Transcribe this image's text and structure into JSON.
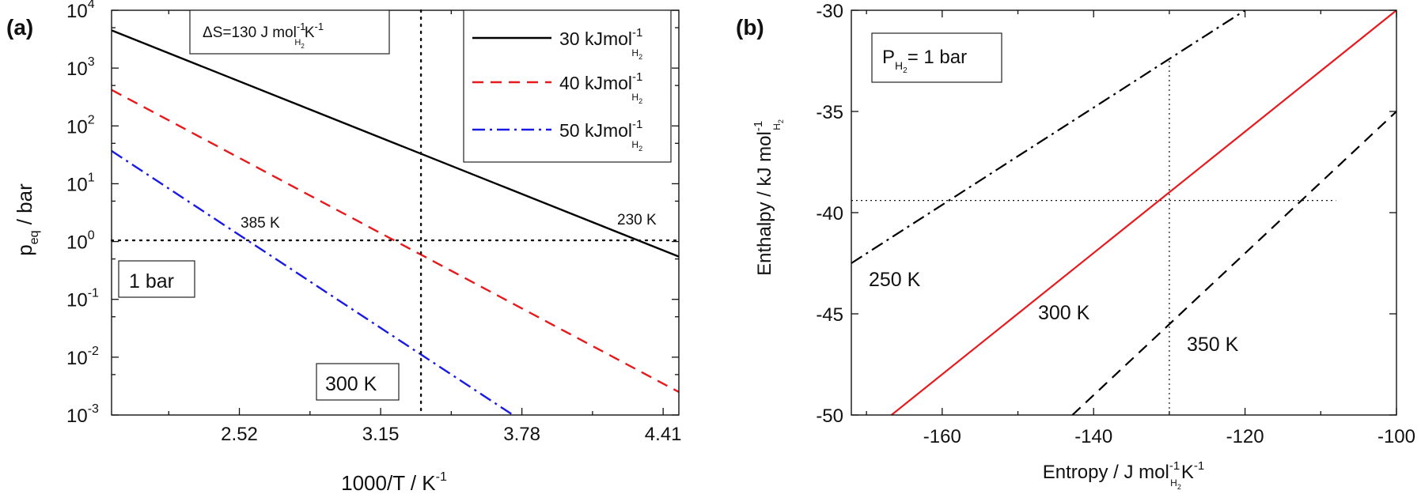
{
  "chart_data": [
    {
      "panel": "(a)",
      "type": "line",
      "yscale": "log",
      "xlabel": "1000/T / K",
      "xlabel_sup": "-1",
      "ylabel_main": "p",
      "ylabel_sub": "eq",
      "ylabel_unit": " / bar",
      "xlim": [
        1.95,
        4.48
      ],
      "ylim": [
        0.001,
        10000
      ],
      "xticks": [
        {
          "value": 2.52,
          "label": "2.52"
        },
        {
          "value": 3.15,
          "label": "3.15"
        },
        {
          "value": 3.78,
          "label": "3.78"
        },
        {
          "value": 4.41,
          "label": "4.41"
        }
      ],
      "yticks": [
        {
          "value": 10000,
          "base": "10",
          "exp": "4"
        },
        {
          "value": 1000,
          "base": "10",
          "exp": "3"
        },
        {
          "value": 100,
          "base": "10",
          "exp": "2"
        },
        {
          "value": 10,
          "base": "10",
          "exp": "1"
        },
        {
          "value": 1,
          "base": "10",
          "exp": "0"
        },
        {
          "value": 0.1,
          "base": "10",
          "exp": "-1"
        },
        {
          "value": 0.01,
          "base": "10",
          "exp": "-2"
        },
        {
          "value": 0.001,
          "base": "10",
          "exp": "-3"
        }
      ],
      "series": [
        {
          "name": "30 kJmol",
          "sup": "-1",
          "sub": "H2",
          "color": "#000000",
          "dash": "solid",
          "x": [
            1.95,
            4.48
          ],
          "y": [
            4500,
            0.55
          ]
        },
        {
          "name": "40 kJmol",
          "sup": "-1",
          "sub": "H2",
          "color": "#e8191c",
          "dash": "dashed",
          "x": [
            1.95,
            4.48
          ],
          "y": [
            420,
            0.0025
          ]
        },
        {
          "name": "50 kJmol",
          "sup": "-1",
          "sub": "H2",
          "color": "#1a1ae6",
          "dash": "dashdot",
          "x": [
            1.95,
            3.74
          ],
          "y": [
            37,
            0.001
          ]
        }
      ],
      "reference_lines": {
        "horizontal_value": 1.05,
        "vertical_value": 3.33
      },
      "annotations": {
        "delta_s": {
          "prefix": "ΔS=130 J mol",
          "sup1": "-1",
          "sub": "H2",
          "mid": "K",
          "sup2": "-1"
        },
        "one_bar": "1 bar",
        "t300": "300 K",
        "t385": "385 K",
        "t230": "230 K"
      }
    },
    {
      "panel": "(b)",
      "type": "line",
      "xlabel": "Entropy / J mol",
      "xlabel_sup": "-1",
      "xlabel_sub": "H2",
      "xlabel_end": "K",
      "xlabel_sup2": "-1",
      "ylabel": "Enthalpy / kJ mol",
      "ylabel_sup": "-1",
      "ylabel_sub": "H2",
      "xlim": [
        -172,
        -100
      ],
      "ylim": [
        -50,
        -30
      ],
      "xticks": [
        {
          "value": -160,
          "label": "-160"
        },
        {
          "value": -140,
          "label": "-140"
        },
        {
          "value": -120,
          "label": "-120"
        },
        {
          "value": -100,
          "label": "-100"
        }
      ],
      "yticks": [
        {
          "value": -30,
          "label": "-30"
        },
        {
          "value": -35,
          "label": "-35"
        },
        {
          "value": -40,
          "label": "-40"
        },
        {
          "value": -45,
          "label": "-45"
        },
        {
          "value": -50,
          "label": "-50"
        }
      ],
      "series": [
        {
          "name": "250 K",
          "color": "#000000",
          "dash": "dashdot",
          "x": [
            -172,
            -120
          ],
          "y": [
            -42.5,
            -30
          ]
        },
        {
          "name": "300 K",
          "color": "#e8191c",
          "dash": "solid",
          "x": [
            -166.7,
            -100
          ],
          "y": [
            -50,
            -30
          ]
        },
        {
          "name": "350 K",
          "color": "#000000",
          "dash": "dashed",
          "x": [
            -142.8,
            -100
          ],
          "y": [
            -50,
            -35
          ]
        }
      ],
      "reference_lines": {
        "horizontal_value": -39.4,
        "vertical_value": -130
      },
      "annotations": {
        "pressure": {
          "prefix": "P",
          "sub": "H2",
          "suffix": "= 1 bar"
        },
        "t250": "250 K",
        "t300": "300 K",
        "t350": "350 K"
      }
    }
  ]
}
